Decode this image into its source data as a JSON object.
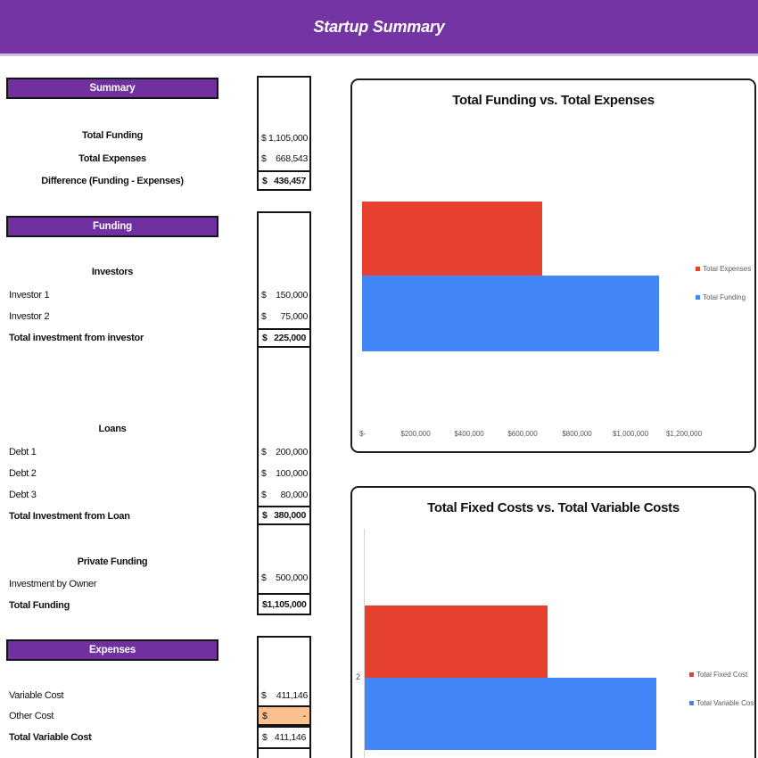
{
  "banner": {
    "title": "Startup Summary"
  },
  "colors": {
    "banner_purple": "#7434A4",
    "header_purple": "#7030A0",
    "series_red": "#E5412E",
    "series_blue": "#4386F5",
    "input_cell_orange": "#FAC08F"
  },
  "summary": {
    "header": "Summary",
    "rows": [
      {
        "label": "Total Funding",
        "cur": "$",
        "value": "1,105,000"
      },
      {
        "label": "Total Expenses",
        "cur": "$",
        "value": "668,543"
      },
      {
        "label": "Difference (Funding - Expenses)",
        "cur": "$",
        "value": "436,457"
      }
    ]
  },
  "funding": {
    "header": "Funding",
    "investors": {
      "title": "Investors",
      "rows": [
        {
          "label": "Investor 1",
          "cur": "$",
          "value": "150,000"
        },
        {
          "label": "Investor 2",
          "cur": "$",
          "value": "75,000"
        }
      ],
      "total": {
        "label": "Total investment from investor",
        "cur": "$",
        "value": "225,000"
      }
    },
    "loans": {
      "title": "Loans",
      "rows": [
        {
          "label": "Debt 1",
          "cur": "$",
          "value": "200,000"
        },
        {
          "label": "Debt 2",
          "cur": "$",
          "value": "100,000"
        },
        {
          "label": "Debt 3",
          "cur": "$",
          "value": "80,000"
        }
      ],
      "total": {
        "label": "Total Investment from Loan",
        "cur": "$",
        "value": "380,000"
      }
    },
    "private": {
      "title": "Private Funding",
      "rows": [
        {
          "label": "Investment by Owner",
          "cur": "$",
          "value": "500,000"
        }
      ],
      "total": {
        "label": "Total Funding",
        "cur": "$",
        "value": "1,105,000"
      }
    }
  },
  "expenses": {
    "header": "Expenses",
    "rows": [
      {
        "label": "Variable Cost",
        "cur": "$",
        "value": "411,146"
      },
      {
        "label": "Other Cost",
        "cur": "$",
        "value": "-"
      }
    ],
    "total": {
      "label": "Total Variable Cost",
      "cur": "$",
      "value": "411,146"
    }
  },
  "chart_data": [
    {
      "type": "bar",
      "orientation": "horizontal",
      "title": "Total Funding vs. Total Expenses",
      "series": [
        {
          "name": "Total Expenses",
          "value": 668543,
          "color": "#E5412E"
        },
        {
          "name": "Total Funding",
          "value": 1105000,
          "color": "#4386F5"
        }
      ],
      "xlim": [
        0,
        1200000
      ],
      "x_ticks": [
        "$-",
        "$200,000",
        "$400,000",
        "$600,000",
        "$800,000",
        "$1,000,000",
        "$1,200,000"
      ],
      "grid": false,
      "legend_position": "right"
    },
    {
      "type": "bar",
      "orientation": "horizontal",
      "title": "Total Fixed Costs vs. Total Variable Costs",
      "category_label": "2",
      "series": [
        {
          "name": "Total Fixed Cost",
          "value": 257397,
          "color": "#E5412E"
        },
        {
          "name": "Total Variable Cost",
          "value": 411146,
          "color": "#4386F5"
        }
      ],
      "xlim": [
        0,
        450000
      ],
      "x_ticks": [],
      "grid": false,
      "legend_position": "right"
    }
  ]
}
